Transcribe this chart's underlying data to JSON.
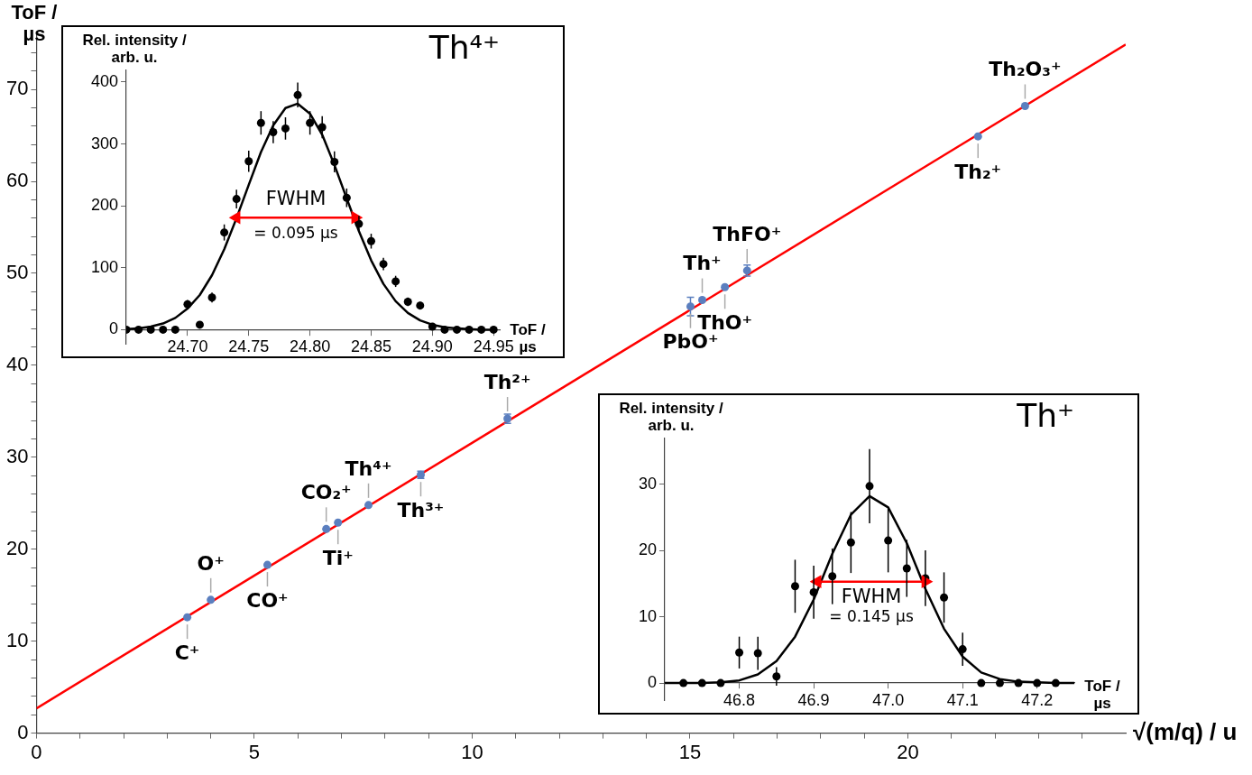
{
  "chart_data": [
    {
      "type": "scatter",
      "xlabel": "√(m/q) / u",
      "ylabel": "ToF /µs",
      "xlim": [
        0,
        25
      ],
      "ylim": [
        0,
        76
      ],
      "xticks": [
        0,
        {
          "value": 1,
          "label": null
        },
        {
          "value": 2,
          "label": null
        },
        {
          "value": 3,
          "label": null
        },
        {
          "value": 4,
          "label": null
        },
        5,
        {
          "value": 6,
          "label": null
        },
        {
          "value": 7,
          "label": null
        },
        {
          "value": 8,
          "label": null
        },
        {
          "value": 9,
          "label": null
        },
        10,
        {
          "value": 11,
          "label": null
        },
        {
          "value": 12,
          "label": null
        },
        {
          "value": 13,
          "label": null
        },
        {
          "value": 14,
          "label": null
        },
        15,
        {
          "value": 16,
          "label": null
        },
        {
          "value": 17,
          "label": null
        },
        {
          "value": 18,
          "label": null
        },
        {
          "value": 19,
          "label": null
        },
        20,
        {
          "value": 21,
          "label": null
        },
        {
          "value": 22,
          "label": null
        },
        {
          "value": 23,
          "label": null
        },
        {
          "value": 24,
          "label": null
        }
      ],
      "yticks": [
        0,
        {
          "value": 2,
          "label": null
        },
        {
          "value": 4,
          "label": null
        },
        {
          "value": 6,
          "label": null
        },
        {
          "value": 8,
          "label": null
        },
        10,
        {
          "value": 12,
          "label": null
        },
        {
          "value": 14,
          "label": null
        },
        {
          "value": 16,
          "label": null
        },
        {
          "value": 18,
          "label": null
        },
        20,
        {
          "value": 22,
          "label": null
        },
        {
          "value": 24,
          "label": null
        },
        {
          "value": 26,
          "label": null
        },
        {
          "value": 28,
          "label": null
        },
        30,
        {
          "value": 32,
          "label": null
        },
        {
          "value": 34,
          "label": null
        },
        {
          "value": 36,
          "label": null
        },
        {
          "value": 38,
          "label": null
        },
        40,
        {
          "value": 42,
          "label": null
        },
        {
          "value": 44,
          "label": null
        },
        {
          "value": 46,
          "label": null
        },
        {
          "value": 48,
          "label": null
        },
        50,
        {
          "value": 52,
          "label": null
        },
        {
          "value": 54,
          "label": null
        },
        {
          "value": 56,
          "label": null
        },
        {
          "value": 58,
          "label": null
        },
        60,
        {
          "value": 62,
          "label": null
        },
        {
          "value": 64,
          "label": null
        },
        {
          "value": 66,
          "label": null
        },
        {
          "value": 68,
          "label": null
        },
        70,
        {
          "value": 72,
          "label": null
        },
        {
          "value": 74,
          "label": null
        }
      ],
      "grid": false,
      "legend": false,
      "series": [
        {
          "type": "scatter",
          "color": "#5b7fbf",
          "marker": "circle",
          "x": [
            3.46,
            4.0,
            5.3,
            6.65,
            6.92,
            7.62,
            8.82,
            10.81,
            15.01,
            15.28,
            15.8,
            16.31,
            21.61,
            22.69
          ],
          "values": [
            12.6,
            14.5,
            18.3,
            22.2,
            22.9,
            24.8,
            28.1,
            34.2,
            46.4,
            47.1,
            48.5,
            50.3,
            64.9,
            68.2
          ],
          "errors": [
            null,
            null,
            null,
            null,
            null,
            null,
            0.4,
            0.5,
            1.0,
            null,
            null,
            0.6,
            null,
            null
          ]
        },
        {
          "type": "line",
          "color": "#ff0000",
          "marker": "none",
          "x": [
            0,
            25
          ],
          "values": [
            2.7,
            74.9
          ]
        }
      ],
      "annotations": [
        {
          "text": "C⁺",
          "x": 3.46,
          "y": 12.6
        },
        {
          "text": "O⁺",
          "x": 4.0,
          "y": 14.5
        },
        {
          "text": "CO⁺",
          "x": 5.3,
          "y": 18.3
        },
        {
          "text": "CO₂⁺",
          "x": 6.65,
          "y": 22.2
        },
        {
          "text": "Ti⁺",
          "x": 6.92,
          "y": 22.9
        },
        {
          "text": "Th⁴⁺",
          "x": 7.62,
          "y": 24.8
        },
        {
          "text": "Th³⁺",
          "x": 8.82,
          "y": 28.1
        },
        {
          "text": "Th²⁺",
          "x": 10.81,
          "y": 34.2
        },
        {
          "text": "PbO⁺",
          "x": 15.01,
          "y": 46.4
        },
        {
          "text": "Th⁺",
          "x": 15.28,
          "y": 47.1
        },
        {
          "text": "ThO⁺",
          "x": 15.8,
          "y": 48.5
        },
        {
          "text": "ThFO⁺",
          "x": 16.31,
          "y": 50.3
        },
        {
          "text": "Th₂⁺",
          "x": 21.61,
          "y": 64.9
        },
        {
          "text": "Th₂O₃⁺",
          "x": 22.69,
          "y": 68.2
        }
      ]
    },
    {
      "type": "scatter",
      "title": "Th⁴⁺",
      "xlabel": "ToF / µs",
      "ylabel": "Rel. intensity / arb. u.",
      "xlim": [
        24.65,
        24.955
      ],
      "ylim": [
        -23,
        420
      ],
      "xticks": [
        {
          "value": 24.7,
          "label": "24.70"
        },
        {
          "value": 24.75,
          "label": "24.75"
        },
        {
          "value": 24.8,
          "label": "24.80"
        },
        {
          "value": 24.85,
          "label": "24.85"
        },
        {
          "value": 24.9,
          "label": "24.90"
        },
        {
          "value": 24.95,
          "label": "24.95"
        }
      ],
      "yticks": [
        0,
        100,
        200,
        300,
        400
      ],
      "grid": false,
      "legend": false,
      "series": [
        {
          "type": "scatter",
          "color": "#000000",
          "marker": "circle",
          "x": [
            24.65,
            24.66,
            24.67,
            24.68,
            24.69,
            24.7,
            24.71,
            24.72,
            24.73,
            24.74,
            24.75,
            24.76,
            24.77,
            24.78,
            24.79,
            24.8,
            24.81,
            24.82,
            24.83,
            24.84,
            24.85,
            24.86,
            24.87,
            24.88,
            24.89,
            24.9,
            24.91,
            24.92,
            24.93,
            24.94,
            24.95
          ],
          "values": [
            0,
            0,
            0,
            0,
            0,
            41,
            8,
            52,
            157,
            211,
            272,
            334,
            319,
            325,
            379,
            334,
            327,
            271,
            213,
            171,
            143,
            106,
            78,
            45,
            39,
            5,
            0,
            0,
            0,
            0,
            0
          ],
          "errors": [
            null,
            null,
            null,
            null,
            null,
            7,
            4,
            8,
            13,
            15,
            17,
            19,
            18,
            18,
            20,
            19,
            18,
            17,
            15,
            13,
            12,
            10,
            9,
            7,
            6,
            3,
            null,
            null,
            null,
            null,
            null
          ]
        },
        {
          "type": "line",
          "color": "#000000",
          "marker": "none",
          "x": [
            24.65,
            24.66,
            24.67,
            24.68,
            24.69,
            24.7,
            24.71,
            24.72,
            24.73,
            24.74,
            24.75,
            24.76,
            24.77,
            24.78,
            24.79,
            24.8,
            24.81,
            24.82,
            24.83,
            24.84,
            24.85,
            24.86,
            24.87,
            24.88,
            24.89,
            24.9,
            24.91,
            24.92,
            24.93,
            24.94,
            24.95
          ],
          "values": [
            1,
            2,
            5,
            10,
            19,
            34,
            56,
            88,
            130,
            180,
            234,
            287,
            330,
            358,
            365,
            349,
            315,
            266,
            212,
            159,
            112,
            74,
            46,
            27,
            15,
            8,
            4,
            2,
            1,
            0,
            0
          ]
        },
        {
          "type": "line",
          "color": "#ff0000",
          "marker": "triangle",
          "x": [
            24.74,
            24.837
          ],
          "values": [
            181,
            181
          ]
        }
      ],
      "annotations": [
        "FWHM",
        "= 0.095 µs"
      ]
    },
    {
      "type": "scatter",
      "title": "Th⁺",
      "xlabel": "ToF / µs",
      "ylabel": "Rel. intensity / arb. u.",
      "xlim": [
        46.7,
        47.25
      ],
      "ylim": [
        -2.6,
        37
      ],
      "xticks": [
        46.8,
        46.9,
        {
          "value": 47.0,
          "label": "47.0"
        },
        47.1,
        47.2
      ],
      "yticks": [
        0,
        10,
        20,
        30
      ],
      "grid": false,
      "legend": false,
      "series": [
        {
          "type": "scatter",
          "color": "#000000",
          "marker": "circle",
          "x": [
            46.725,
            46.75,
            46.775,
            46.8,
            46.825,
            46.85,
            46.875,
            46.9,
            46.925,
            46.95,
            46.975,
            47.0,
            47.025,
            47.05,
            47.075,
            47.1,
            47.125,
            47.15,
            47.175,
            47.2,
            47.225
          ],
          "values": [
            0,
            0,
            0,
            4.6,
            4.5,
            1.0,
            14.6,
            13.7,
            16.1,
            21.2,
            29.7,
            21.5,
            17.3,
            15.8,
            12.9,
            5.1,
            0,
            0,
            0,
            0,
            0
          ],
          "errors": [
            null,
            null,
            null,
            2.4,
            2.5,
            1.4,
            4,
            4,
            4.2,
            4.6,
            5.6,
            4.8,
            4.3,
            4.2,
            3.8,
            2.5,
            null,
            null,
            null,
            null,
            null
          ]
        },
        {
          "type": "line",
          "color": "#000000",
          "marker": "none",
          "x": [
            46.7,
            46.725,
            46.75,
            46.775,
            46.8,
            46.825,
            46.85,
            46.875,
            46.9,
            46.925,
            46.95,
            46.975,
            47.0,
            47.025,
            47.05,
            47.075,
            47.1,
            47.125,
            47.15,
            47.175,
            47.2,
            47.225,
            47.25
          ],
          "values": [
            0,
            0,
            0,
            0.1,
            0.4,
            1.3,
            3.3,
            7.0,
            12.6,
            19.5,
            25.4,
            28.2,
            26.5,
            21.1,
            14.2,
            8.2,
            4.0,
            1.6,
            0.6,
            0.2,
            0.1,
            0,
            0
          ]
        },
        {
          "type": "line",
          "color": "#ff0000",
          "marker": "triangle",
          "x": [
            46.905,
            47.05
          ],
          "values": [
            15.3,
            15.3
          ]
        }
      ],
      "annotations": [
        "FWHM",
        "= 0.145 µs"
      ]
    }
  ]
}
